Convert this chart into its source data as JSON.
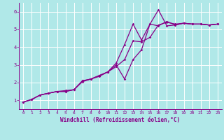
{
  "xlabel": "Windchill (Refroidissement éolien,°C)",
  "bg_color": "#b0e8e8",
  "grid_color": "#ffffff",
  "line_color": "#880088",
  "xlim": [
    -0.5,
    23.5
  ],
  "ylim": [
    0.5,
    6.5
  ],
  "xticks": [
    0,
    1,
    2,
    3,
    4,
    5,
    6,
    7,
    8,
    9,
    10,
    11,
    12,
    13,
    14,
    15,
    16,
    17,
    18,
    19,
    20,
    21,
    22,
    23
  ],
  "yticks": [
    1,
    2,
    3,
    4,
    5,
    6
  ],
  "series1_x": [
    0,
    1,
    2,
    3,
    4,
    5,
    6,
    7,
    8,
    9,
    10,
    11,
    12,
    13,
    14,
    15,
    16,
    17,
    18,
    19,
    20,
    21,
    22,
    23
  ],
  "series1_y": [
    0.9,
    1.05,
    1.3,
    1.4,
    1.5,
    1.55,
    1.6,
    2.05,
    2.2,
    2.35,
    2.6,
    2.9,
    3.3,
    4.35,
    4.3,
    4.55,
    5.25,
    5.4,
    5.3,
    5.35,
    5.3,
    5.3,
    5.25,
    5.3
  ],
  "series2_x": [
    0,
    1,
    2,
    3,
    4,
    5,
    6,
    7,
    8,
    9,
    10,
    11,
    12,
    13,
    14,
    15,
    16,
    17,
    18,
    19,
    20,
    21,
    22,
    23
  ],
  "series2_y": [
    0.9,
    1.05,
    1.3,
    1.4,
    1.5,
    1.5,
    1.6,
    2.1,
    2.2,
    2.4,
    2.6,
    3.0,
    2.2,
    3.3,
    3.85,
    5.3,
    6.1,
    5.2,
    5.25,
    5.35,
    5.3,
    5.3,
    5.25,
    5.3
  ],
  "series3_x": [
    0,
    1,
    2,
    3,
    4,
    5,
    6,
    7,
    8,
    9,
    10,
    11,
    12,
    13,
    14,
    15,
    16,
    17,
    18,
    19,
    20,
    21,
    22,
    23
  ],
  "series3_y": [
    0.9,
    1.05,
    1.3,
    1.4,
    1.5,
    1.5,
    1.6,
    2.1,
    2.2,
    2.4,
    2.6,
    3.1,
    4.15,
    5.3,
    4.4,
    5.3,
    5.2,
    5.45,
    5.25,
    5.35,
    5.3,
    5.3,
    5.25,
    5.3
  ]
}
